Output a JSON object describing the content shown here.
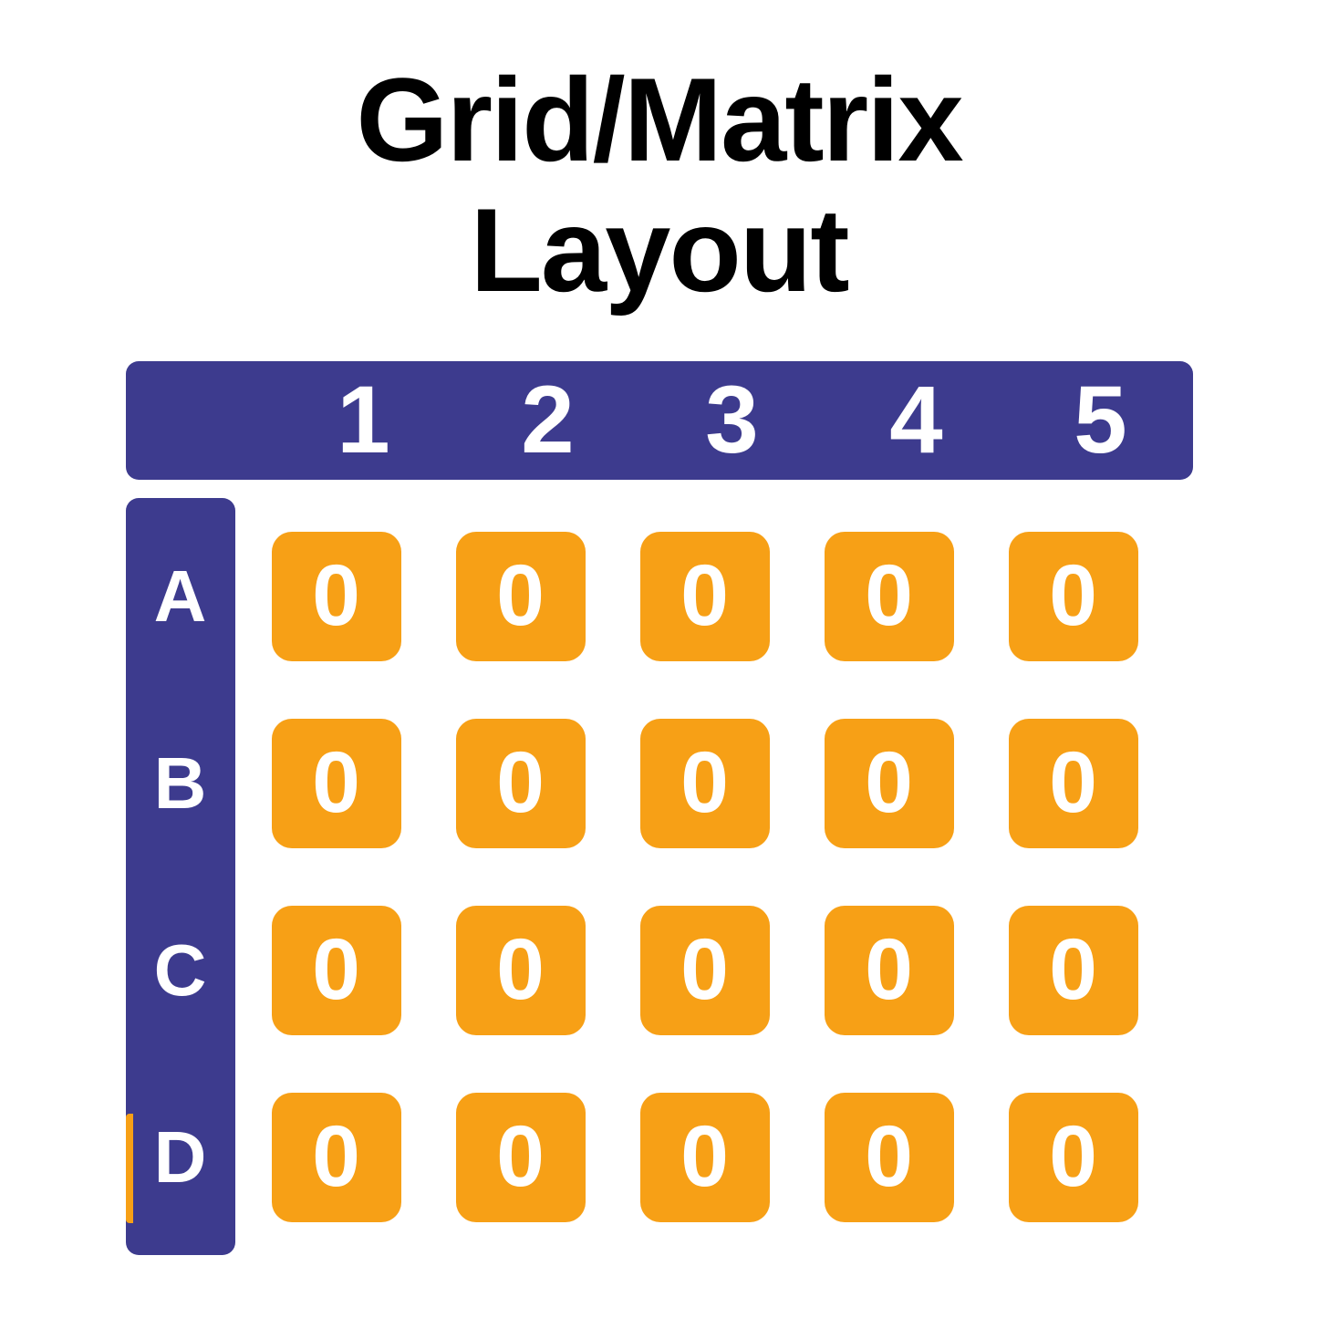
{
  "title": {
    "line1": "Grid/Matrix",
    "line2": "Layout",
    "color": "#000000",
    "fontsize": 130,
    "font_weight": 800
  },
  "matrix": {
    "type": "table",
    "column_headers": [
      "1",
      "2",
      "3",
      "4",
      "5"
    ],
    "row_headers": [
      "A",
      "B",
      "C",
      "D"
    ],
    "cells": [
      [
        "0",
        "0",
        "0",
        "0",
        "0"
      ],
      [
        "0",
        "0",
        "0",
        "0",
        "0"
      ],
      [
        "0",
        "0",
        "0",
        "0",
        "0"
      ],
      [
        "0",
        "0",
        "0",
        "0",
        "0"
      ]
    ],
    "header_bg_color": "#3d3b8e",
    "header_text_color": "#ffffff",
    "header_border_radius": 14,
    "col_header_fontsize": 105,
    "row_header_fontsize": 80,
    "header_font_weight": 700,
    "cell_bg_color": "#f7a016",
    "cell_text_color": "#ffffff",
    "cell_border_radius": 22,
    "cell_fontsize": 95,
    "cell_font_weight": 700,
    "cell_size": 142,
    "cell_gap": 60,
    "row_gap": 30,
    "background_color": "#ffffff"
  }
}
